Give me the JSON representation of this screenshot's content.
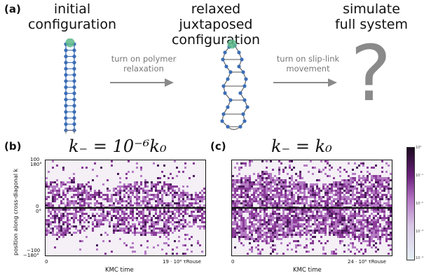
{
  "panel_a": {
    "label": "(a)",
    "stage1": [
      "initial",
      "configuration"
    ],
    "stage2": [
      "relaxed juxtaposed",
      "configuration"
    ],
    "stage3": [
      "simulate",
      "full system"
    ],
    "arrow1": [
      "turn on polymer",
      "relaxation"
    ],
    "arrow2": [
      "turn on slip-link",
      "movement"
    ],
    "question": "?"
  },
  "panel_b": {
    "label": "(b)",
    "title": "k₋ = 10⁻⁶k₀",
    "xlabel": "KMC time",
    "x_start": "0",
    "x_end": "19 · 10⁶ τRouse",
    "ylabel": "position along cross-diagonal k",
    "y_ticks_left": [
      "100",
      "0",
      "−100"
    ],
    "y_ticks_deg": [
      "180°",
      "0°",
      "−180°"
    ]
  },
  "panel_c": {
    "label": "(c)",
    "title": "k₋ = k₀",
    "xlabel": "KMC time",
    "x_start": "0",
    "x_end": "24 · 10⁶ τRouse"
  },
  "colorbar": {
    "ticks": [
      "10⁰",
      "10⁻¹",
      "10⁻²",
      "10⁻³",
      "10⁻⁴"
    ],
    "colors": [
      "#1a0a1f",
      "#6a1f7a",
      "#b070c0",
      "#d8c8e6",
      "#e4eef4"
    ]
  }
}
